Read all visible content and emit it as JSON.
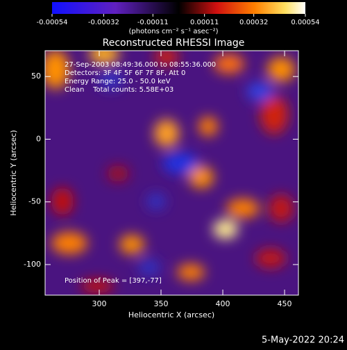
{
  "chart_data": {
    "type": "image",
    "title": "Reconstructed RHESSI Image",
    "xlabel": "Heliocentric X (arcsec)",
    "ylabel": "Heliocentric Y (arcsec)",
    "xlim": [
      256.2,
      461.2
    ],
    "xticks": [
      300,
      350,
      400,
      450
    ],
    "ylim": [
      -124.4,
      70.6
    ],
    "yticks": [
      50,
      0,
      -50,
      -100
    ],
    "annotations": [
      "27-Sep-2003 08:49:36.000 to 08:55:36.000",
      "Detectors: 3F 4F 5F 6F 7F 8F, Att 0",
      "Energy Range: 25.0 - 50.0 keV",
      "Clean    Total counts: 5.58E+03"
    ],
    "peak_label": "Position of Peak = [397,-77]",
    "colorbar": {
      "clim": [
        -0.00054,
        0.00054
      ],
      "ticks": [
        -0.00054,
        -0.00032,
        -0.00011,
        0.00011,
        0.00032,
        0.00054
      ],
      "label": "(photons cm⁻² s⁻¹ asec⁻²)"
    },
    "footer": "5-May-2022 20:24"
  }
}
